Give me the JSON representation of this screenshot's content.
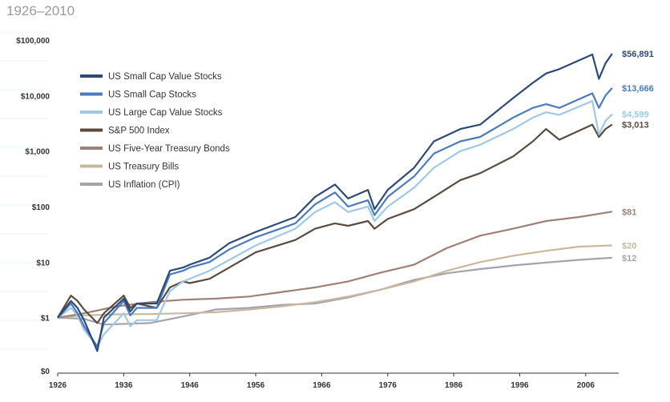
{
  "subtitle": "1926–2010",
  "chart_data": {
    "type": "line",
    "title": "",
    "subtitle": "1926–2010",
    "xlabel": "",
    "ylabel": "",
    "y_scale": "log",
    "ylim": [
      0.1,
      100000
    ],
    "xlim": [
      1926,
      2011
    ],
    "y_tick_labels": [
      "$0",
      "$1",
      "$10",
      "$100",
      "$1,000",
      "$10,000",
      "$100,000"
    ],
    "y_tick_values": [
      0.1,
      1,
      10,
      100,
      1000,
      10000,
      100000
    ],
    "x_tick_labels": [
      "1926",
      "1936",
      "1946",
      "1956",
      "1966",
      "1976",
      "1986",
      "1996",
      "2006"
    ],
    "x_tick_values": [
      1926,
      1936,
      1946,
      1956,
      1966,
      1976,
      1986,
      1996,
      2006
    ],
    "legend_position": "top-left",
    "grid": false,
    "series": [
      {
        "name": "US Small Cap Value Stocks",
        "color": "#2c4a78",
        "end_label": "$56,891",
        "x": [
          1926,
          1928,
          1929,
          1930,
          1932,
          1933,
          1936,
          1937,
          1938,
          1941,
          1943,
          1945,
          1946,
          1949,
          1952,
          1956,
          1962,
          1965,
          1968,
          1970,
          1973,
          1974,
          1976,
          1980,
          1983,
          1987,
          1990,
          1995,
          1998,
          2000,
          2002,
          2007,
          2008,
          2009,
          2010
        ],
        "y": [
          1,
          2,
          1.5,
          0.9,
          0.25,
          1,
          2.2,
          1.3,
          1.8,
          1.8,
          7,
          8,
          9,
          12,
          22,
          35,
          65,
          150,
          250,
          140,
          200,
          90,
          200,
          500,
          1500,
          2500,
          3000,
          9000,
          17000,
          25000,
          30000,
          55000,
          20000,
          38000,
          56891
        ]
      },
      {
        "name": "US Small Cap Stocks",
        "color": "#4a7bbd",
        "end_label": "$13,666",
        "x": [
          1926,
          1928,
          1929,
          1930,
          1932,
          1933,
          1936,
          1937,
          1938,
          1941,
          1943,
          1945,
          1946,
          1949,
          1952,
          1956,
          1962,
          1965,
          1968,
          1970,
          1973,
          1974,
          1976,
          1980,
          1983,
          1987,
          1990,
          1995,
          1998,
          2000,
          2002,
          2007,
          2008,
          2009,
          2010
        ],
        "y": [
          1,
          1.8,
          1.2,
          0.7,
          0.3,
          0.8,
          2,
          1.1,
          1.5,
          1.5,
          6,
          7,
          8,
          10,
          17,
          28,
          50,
          110,
          180,
          100,
          130,
          70,
          150,
          350,
          900,
          1500,
          1800,
          4000,
          6000,
          7000,
          6000,
          11000,
          6000,
          10000,
          13666
        ]
      },
      {
        "name": "US Large Cap Value Stocks",
        "color": "#9fc8e8",
        "end_label": "$4,599",
        "x": [
          1926,
          1928,
          1929,
          1930,
          1932,
          1933,
          1936,
          1937,
          1938,
          1941,
          1943,
          1945,
          1946,
          1949,
          1952,
          1956,
          1962,
          1965,
          1968,
          1970,
          1973,
          1974,
          1976,
          1980,
          1983,
          1987,
          1990,
          1995,
          1998,
          2000,
          2002,
          2007,
          2008,
          2009,
          2010
        ],
        "y": [
          1,
          1.5,
          1.1,
          0.6,
          0.3,
          0.5,
          1.2,
          0.7,
          0.9,
          0.9,
          3,
          4.5,
          5,
          7,
          11,
          20,
          40,
          80,
          120,
          80,
          100,
          55,
          100,
          220,
          500,
          1000,
          1300,
          2500,
          4000,
          5000,
          4500,
          8000,
          2000,
          3500,
          4599
        ]
      },
      {
        "name": "S&P 500 Index",
        "color": "#5a4a40",
        "end_label": "$3,013",
        "x": [
          1926,
          1928,
          1929,
          1930,
          1932,
          1933,
          1936,
          1937,
          1938,
          1941,
          1943,
          1945,
          1946,
          1949,
          1952,
          1956,
          1962,
          1965,
          1968,
          1970,
          1973,
          1974,
          1976,
          1980,
          1983,
          1987,
          1990,
          1995,
          1998,
          2000,
          2002,
          2007,
          2008,
          2009,
          2010
        ],
        "y": [
          1,
          2.5,
          2,
          1.4,
          0.8,
          1.2,
          2.5,
          1.5,
          1.8,
          1.5,
          3.5,
          4.5,
          4.2,
          5,
          8,
          15,
          25,
          40,
          50,
          45,
          55,
          40,
          60,
          90,
          150,
          300,
          400,
          800,
          1500,
          2500,
          1600,
          3000,
          1800,
          2500,
          3013
        ]
      },
      {
        "name": "US Five-Year Treasury Bonds",
        "color": "#9e8076",
        "end_label": "$81",
        "x": [
          1926,
          1930,
          1935,
          1940,
          1945,
          1950,
          1955,
          1960,
          1965,
          1970,
          1975,
          1980,
          1985,
          1990,
          1995,
          2000,
          2005,
          2010
        ],
        "y": [
          1,
          1.2,
          1.6,
          1.9,
          2.1,
          2.2,
          2.4,
          2.9,
          3.5,
          4.5,
          6.5,
          9,
          18,
          30,
          40,
          55,
          65,
          81
        ]
      },
      {
        "name": "US Treasury Bills",
        "color": "#c8b89c",
        "end_label": "$20",
        "x": [
          1926,
          1930,
          1935,
          1940,
          1945,
          1950,
          1955,
          1960,
          1965,
          1970,
          1975,
          1980,
          1985,
          1990,
          1995,
          2000,
          2005,
          2010
        ],
        "y": [
          1,
          1.1,
          1.15,
          1.16,
          1.2,
          1.25,
          1.4,
          1.6,
          1.9,
          2.4,
          3.2,
          4.5,
          7,
          10,
          13,
          16,
          19,
          20
        ]
      },
      {
        "name": "US Inflation (CPI)",
        "color": "#a3a3ad",
        "end_label": "$12",
        "x": [
          1926,
          1930,
          1933,
          1940,
          1945,
          1950,
          1955,
          1960,
          1965,
          1970,
          1975,
          1980,
          1985,
          1990,
          1995,
          2000,
          2005,
          2010
        ],
        "y": [
          1,
          0.95,
          0.75,
          0.8,
          1.05,
          1.4,
          1.5,
          1.7,
          1.8,
          2.3,
          3.2,
          4.8,
          6.3,
          7.5,
          8.7,
          9.8,
          11,
          12
        ]
      }
    ]
  }
}
